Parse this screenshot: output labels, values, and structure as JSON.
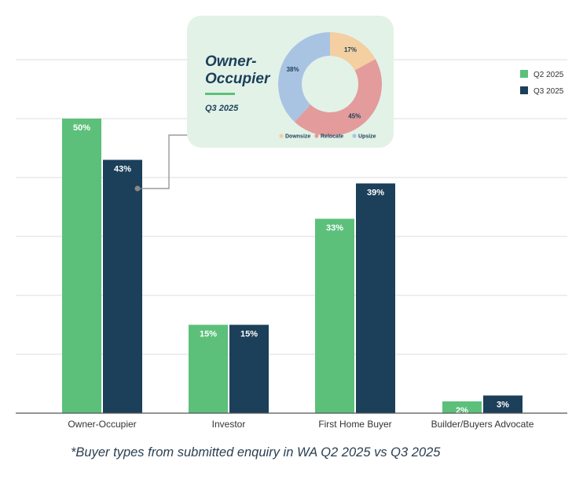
{
  "colors": {
    "q2": "#5cc07a",
    "q3": "#1c3f5a",
    "downsize": "#f3cfa1",
    "relocate": "#e39b9b",
    "upsize": "#a9c4e3",
    "inset_bg": "#e2f2e7",
    "grid": "#dedede",
    "axis": "#555555"
  },
  "chart_data": {
    "type": "bar",
    "categories": [
      "Owner-Occupier",
      "Investor",
      "First Home Buyer",
      "Builder/Buyers Advocate"
    ],
    "series": [
      {
        "name": "Q2 2025",
        "values": [
          50,
          15,
          33,
          2
        ]
      },
      {
        "name": "Q3 2025",
        "values": [
          43,
          15,
          39,
          3
        ]
      }
    ],
    "value_labels": [
      [
        "50%",
        "15%",
        "33%",
        "2%"
      ],
      [
        "43%",
        "15%",
        "39%",
        "3%"
      ]
    ],
    "ylim": [
      0,
      60
    ],
    "grid": true,
    "legend": "top-right",
    "footnote": "*Buyer types from submitted enquiry in WA Q2 2025 vs Q3 2025",
    "inset": {
      "type": "pie",
      "title": "Owner-Occupier",
      "period": "Q3 2025",
      "slices": [
        {
          "label": "Downsize",
          "value": 17,
          "display": "17%"
        },
        {
          "label": "Relocate",
          "value": 45,
          "display": "45%"
        },
        {
          "label": "Upsize",
          "value": 38,
          "display": "38%"
        }
      ]
    }
  }
}
